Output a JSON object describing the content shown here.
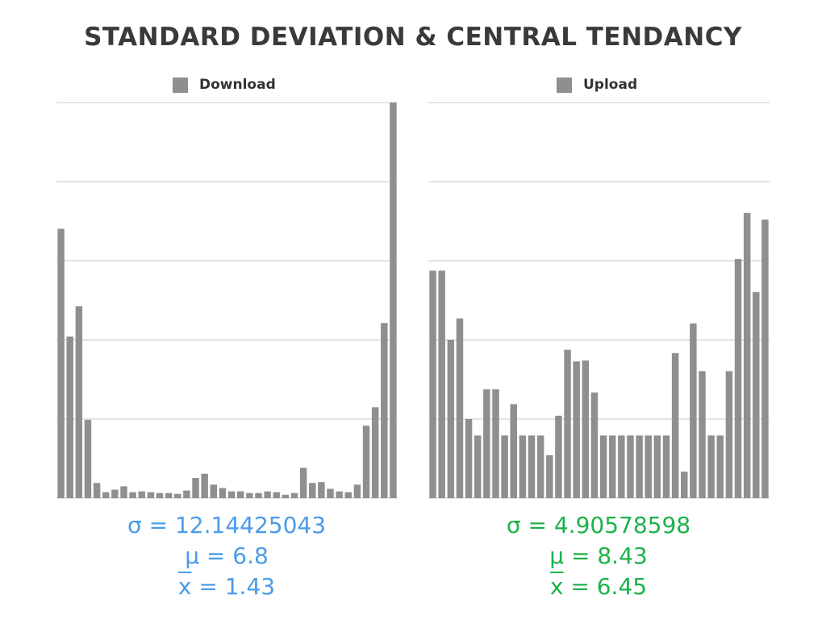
{
  "title": "STANDARD DEVIATION & CENTRAL TENDANCY",
  "colors": {
    "bar": "#8e8f91",
    "grid": "#c8c8c8",
    "download_stats": "#4a9be8",
    "upload_stats": "#1cb34a"
  },
  "chart_data": [
    {
      "type": "bar",
      "title": "",
      "legend": [
        "Download"
      ],
      "legend_placement": "top",
      "grid": true,
      "ylim": [
        0,
        47
      ],
      "series": [
        {
          "name": "Download",
          "values": [
            32,
            19.2,
            22.8,
            9.3,
            1.8,
            0.7,
            1.0,
            1.4,
            0.7,
            0.8,
            0.7,
            0.6,
            0.6,
            0.5,
            0.9,
            2.4,
            2.9,
            1.6,
            1.2,
            0.8,
            0.8,
            0.6,
            0.6,
            0.8,
            0.7,
            0.4,
            0.6,
            3.6,
            1.8,
            1.9,
            1.1,
            0.8,
            0.7,
            1.6,
            8.6,
            10.8,
            20.8,
            47
          ]
        }
      ],
      "stats": {
        "sigma": "σ = 12.14425043",
        "mu": "μ = 6.8",
        "xbar_symbol": "x",
        "xbar_value": " = 1.43"
      }
    },
    {
      "type": "bar",
      "title": "",
      "legend": [
        "Upload"
      ],
      "legend_placement": "top",
      "grid": true,
      "ylim": [
        0,
        24
      ],
      "series": [
        {
          "name": "Upload",
          "values": [
            13.8,
            13.8,
            9.6,
            10.9,
            4.8,
            3.8,
            6.6,
            6.6,
            3.8,
            5.7,
            3.8,
            3.8,
            3.8,
            2.6,
            5.0,
            9.0,
            8.3,
            8.35,
            6.4,
            3.8,
            3.8,
            3.8,
            3.8,
            3.8,
            3.8,
            3.8,
            3.8,
            8.8,
            1.6,
            10.6,
            7.7,
            3.8,
            3.8,
            7.7,
            14.5,
            17.3,
            12.5,
            16.9
          ]
        }
      ],
      "stats": {
        "sigma": "σ = 4.90578598",
        "mu": "μ = 8.43",
        "xbar_symbol": "x",
        "xbar_value": " = 6.45"
      }
    }
  ]
}
